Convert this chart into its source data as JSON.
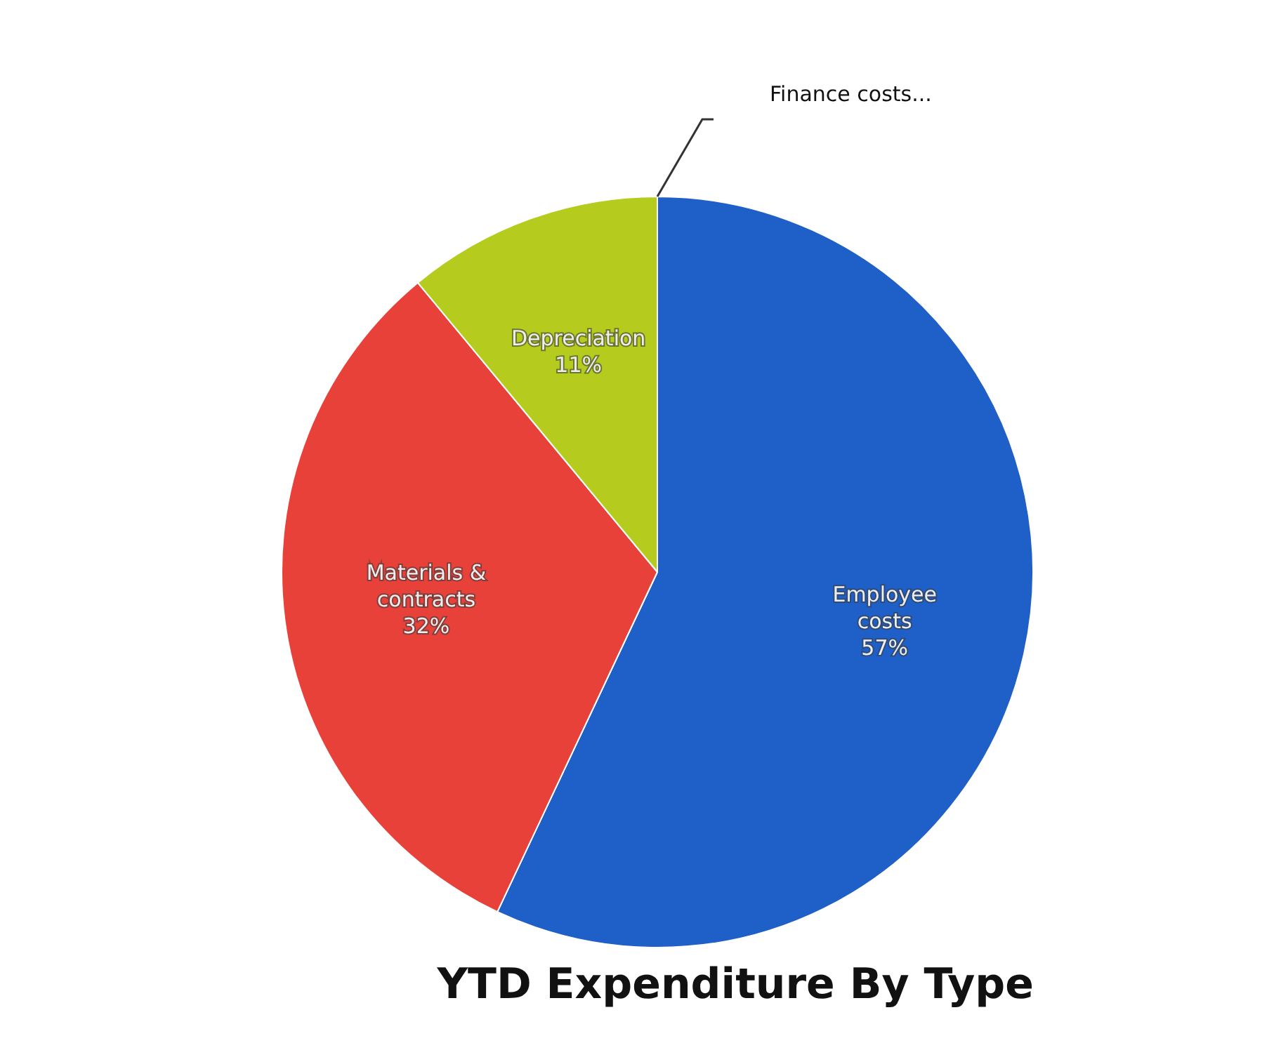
{
  "chart_data": {
    "type": "pie",
    "title": "YTD Expenditure By Type",
    "categories": [
      "Employee costs",
      "Materials & contracts",
      "Depreciation",
      "Finance costs..."
    ],
    "values": [
      57,
      32,
      11,
      0
    ],
    "colors": [
      "#1f5fc8",
      "#e8413a",
      "#b5cc1e",
      "#7f7f7f"
    ],
    "value_labels": [
      "57%",
      "32%",
      "11%",
      null
    ],
    "legend": false
  }
}
